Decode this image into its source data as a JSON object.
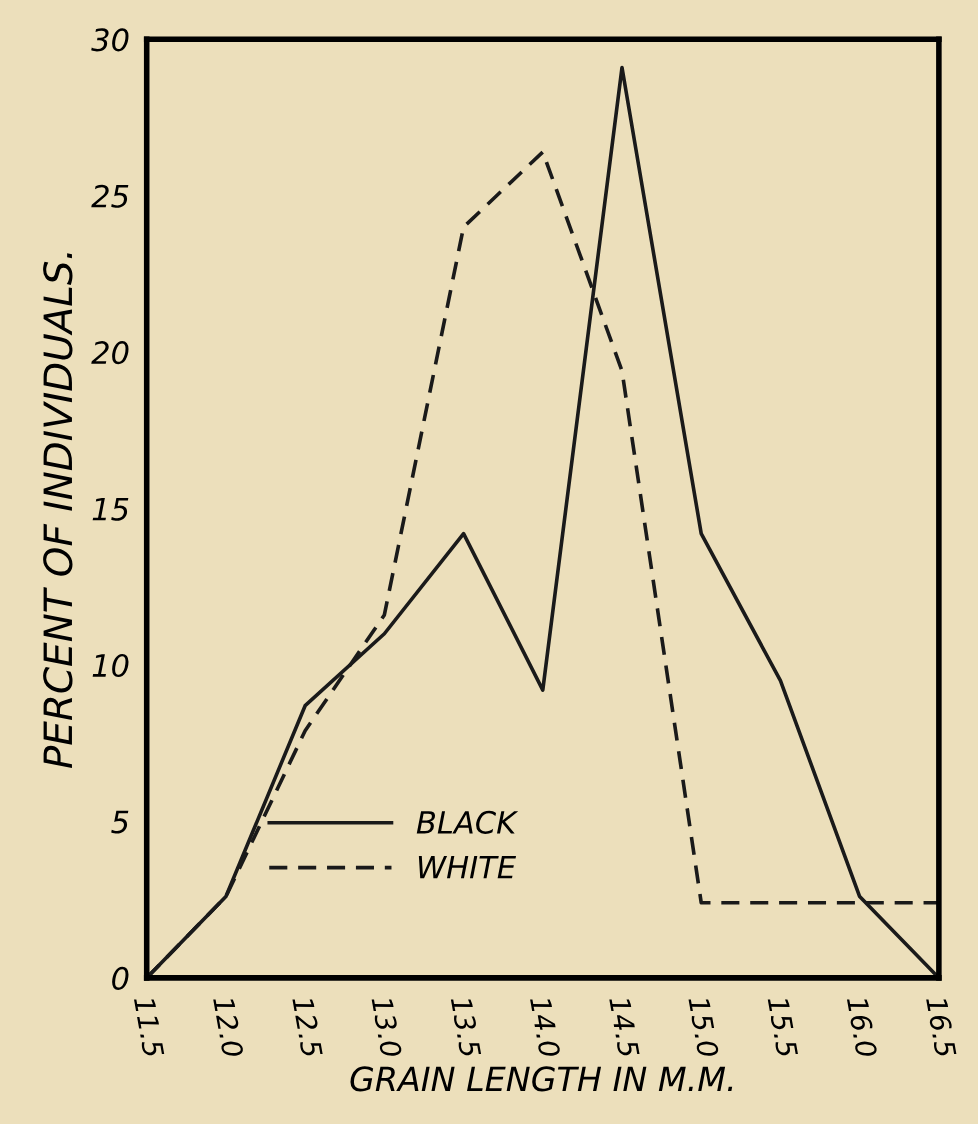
{
  "chart_data": {
    "type": "line",
    "xlabel": "GRAIN LENGTH IN M.M.",
    "ylabel": "PERCENT OF INDIVIDUALS.",
    "x": [
      11.5,
      12.0,
      12.5,
      13.0,
      13.5,
      14.0,
      14.5,
      15.0,
      15.5,
      16.0,
      16.5
    ],
    "series": [
      {
        "name": "BLACK",
        "color": "#1a1a1a",
        "line_style": "solid",
        "values": [
          0,
          2.6,
          8.7,
          11.0,
          14.2,
          9.2,
          29.1,
          14.2,
          9.5,
          2.6,
          0
        ]
      },
      {
        "name": "WHITE",
        "color": "#1a1a1a",
        "line_style": "dashed",
        "values": [
          0,
          2.6,
          7.9,
          11.6,
          24.0,
          26.4,
          19.4,
          2.4,
          2.4,
          2.4,
          2.4
        ]
      }
    ],
    "xlim": [
      11.5,
      16.5
    ],
    "ylim": [
      0,
      30
    ],
    "xticks": [
      {
        "value": 11.5,
        "label": "11.5"
      },
      {
        "value": 12.0,
        "label": "12.0"
      },
      {
        "value": 12.5,
        "label": "12.5"
      },
      {
        "value": 13.0,
        "label": "13.0"
      },
      {
        "value": 13.5,
        "label": "13.5"
      },
      {
        "value": 14.0,
        "label": "14.0"
      },
      {
        "value": 14.5,
        "label": "14.5"
      },
      {
        "value": 15.0,
        "label": "15.0"
      },
      {
        "value": 15.5,
        "label": "15.5"
      },
      {
        "value": 16.0,
        "label": "16.0"
      },
      {
        "value": 16.5,
        "label": "16.5"
      }
    ],
    "yticks": [
      0,
      5,
      10,
      15,
      20,
      25,
      30
    ],
    "grid": false,
    "marker": "none",
    "legend": "bottom left"
  }
}
